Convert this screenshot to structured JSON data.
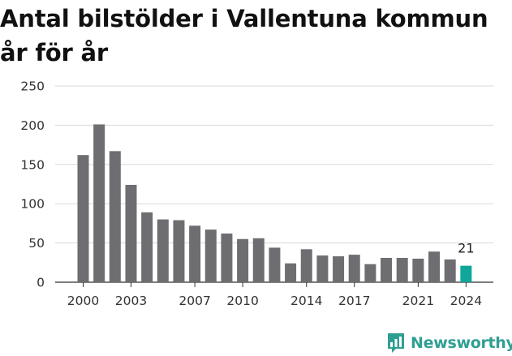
{
  "chart_data": {
    "type": "bar",
    "title": "Antal bilstölder i Vallentuna kommun år för år",
    "categories": [
      2000,
      2001,
      2002,
      2003,
      2004,
      2005,
      2006,
      2007,
      2008,
      2009,
      2010,
      2011,
      2012,
      2013,
      2014,
      2015,
      2016,
      2017,
      2018,
      2019,
      2020,
      2021,
      2022,
      2023,
      2024
    ],
    "values": [
      162,
      201,
      167,
      124,
      89,
      80,
      79,
      72,
      67,
      62,
      55,
      56,
      44,
      24,
      42,
      34,
      33,
      35,
      23,
      31,
      31,
      30,
      39,
      29,
      21
    ],
    "x_tick_labels": [
      2000,
      2003,
      2007,
      2010,
      2014,
      2017,
      2021,
      2024
    ],
    "y_ticks": [
      0,
      50,
      100,
      150,
      200,
      250
    ],
    "ylim": [
      0,
      250
    ],
    "grid": true,
    "colors": {
      "bar": "#6e6d72",
      "highlight": "#10a79a"
    },
    "data_labels": [
      {
        "category": 2024,
        "text": "21"
      }
    ]
  },
  "branding": {
    "name": "Newsworthy",
    "color": "#2f9f93"
  }
}
